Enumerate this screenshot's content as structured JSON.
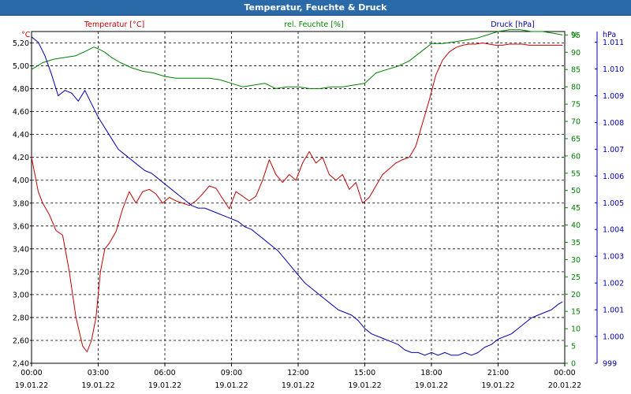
{
  "window": {
    "title": "Temperatur, Feuchte & Druck"
  },
  "colors": {
    "temperature": "#c00000",
    "humidity": "#008000",
    "pressure": "#0000b0",
    "title_bar": "#2b6aa8"
  },
  "chart_data": {
    "type": "line",
    "title": "Temperatur, Feuchte & Druck",
    "grid": true,
    "x_ticks": [
      {
        "time": "00:00",
        "date": "19.01.22"
      },
      {
        "time": "03:00",
        "date": "19.01.22"
      },
      {
        "time": "06:00",
        "date": "19.01.22"
      },
      {
        "time": "09:00",
        "date": "19.01.22"
      },
      {
        "time": "12:00",
        "date": "19.01.22"
      },
      {
        "time": "15:00",
        "date": "19.01.22"
      },
      {
        "time": "18:00",
        "date": "19.01.22"
      },
      {
        "time": "21:00",
        "date": "19.01.22"
      },
      {
        "time": "00:00",
        "date": "20.01.22"
      }
    ],
    "x_range_hours": [
      0,
      24
    ],
    "axes": {
      "temperature": {
        "unit": "°C",
        "range": [
          2.4,
          5.3
        ],
        "ticks": [
          "2,40",
          "2,60",
          "2,80",
          "3,00",
          "3,20",
          "3,40",
          "3,60",
          "3,80",
          "4,00",
          "4,20",
          "4,40",
          "4,60",
          "4,80",
          "5,00",
          "5,20"
        ]
      },
      "humidity": {
        "unit": "%",
        "range": [
          0,
          96
        ],
        "ticks": [
          "0",
          "5",
          "10",
          "15",
          "20",
          "25",
          "30",
          "35",
          "40",
          "45",
          "50",
          "55",
          "60",
          "65",
          "70",
          "75",
          "80",
          "85",
          "90",
          "95"
        ]
      },
      "pressure": {
        "unit": "hPa",
        "range": [
          0.999,
          1.0114
        ],
        "ticks": [
          "999",
          "1.000",
          "1.001",
          "1.002",
          "1.003",
          "1.004",
          "1.005",
          "1.006",
          "1.007",
          "1.008",
          "1.009",
          "1.010",
          "1.011"
        ]
      }
    },
    "series": [
      {
        "name": "Temperatur [°C]",
        "axis": "temperature",
        "x": [
          0,
          0.3,
          0.5,
          0.8,
          1.1,
          1.4,
          1.7,
          2.0,
          2.3,
          2.5,
          2.7,
          2.9,
          3.1,
          3.3,
          3.5,
          3.8,
          4.1,
          4.4,
          4.7,
          5.0,
          5.3,
          5.6,
          5.9,
          6.2,
          6.5,
          6.8,
          7.1,
          7.4,
          7.7,
          8.0,
          8.3,
          8.6,
          8.9,
          9.2,
          9.5,
          9.8,
          10.1,
          10.4,
          10.7,
          11.0,
          11.3,
          11.6,
          11.9,
          12.2,
          12.5,
          12.8,
          13.1,
          13.4,
          13.7,
          14.0,
          14.3,
          14.6,
          14.9,
          15.2,
          15.5,
          15.8,
          16.1,
          16.4,
          16.7,
          17.0,
          17.3,
          17.6,
          17.9,
          18.2,
          18.5,
          18.8,
          19.1,
          19.4,
          19.7,
          20.0,
          20.3,
          20.6,
          20.9,
          21.2,
          21.5,
          21.8,
          22.1,
          22.4,
          22.7,
          23.0,
          23.3,
          23.6,
          23.9
        ],
        "y": [
          4.2,
          3.9,
          3.8,
          3.7,
          3.56,
          3.52,
          3.2,
          2.8,
          2.55,
          2.5,
          2.6,
          2.8,
          3.2,
          3.4,
          3.45,
          3.55,
          3.75,
          3.9,
          3.8,
          3.9,
          3.92,
          3.88,
          3.8,
          3.85,
          3.82,
          3.8,
          3.78,
          3.82,
          3.88,
          3.95,
          3.93,
          3.84,
          3.75,
          3.9,
          3.86,
          3.82,
          3.86,
          4.0,
          4.18,
          4.05,
          3.98,
          4.05,
          4.0,
          4.15,
          4.25,
          4.15,
          4.2,
          4.05,
          4.0,
          4.05,
          3.92,
          3.98,
          3.8,
          3.85,
          3.95,
          4.05,
          4.1,
          4.15,
          4.18,
          4.2,
          4.3,
          4.5,
          4.7,
          4.92,
          5.05,
          5.12,
          5.16,
          5.18,
          5.19,
          5.19,
          5.2,
          5.19,
          5.18,
          5.18,
          5.19,
          5.19,
          5.19,
          5.18,
          5.18,
          5.18,
          5.18,
          5.18,
          5.18
        ]
      },
      {
        "name": "rel. Feuchte [%]",
        "axis": "humidity",
        "x": [
          0,
          0.5,
          1.0,
          1.5,
          2.0,
          2.5,
          2.8,
          3.0,
          3.3,
          3.6,
          4.0,
          4.5,
          5.0,
          5.5,
          6.0,
          6.5,
          7.0,
          7.5,
          8.0,
          8.5,
          9.0,
          9.5,
          10.0,
          10.5,
          11.0,
          11.5,
          12.0,
          12.5,
          13.0,
          13.5,
          14.0,
          14.5,
          15.0,
          15.5,
          16.0,
          16.5,
          17.0,
          17.5,
          18.0,
          18.5,
          19.0,
          19.5,
          20.0,
          20.5,
          21.0,
          21.5,
          22.0,
          22.5,
          23.0,
          23.5,
          23.9
        ],
        "y": [
          85,
          87,
          88,
          88.5,
          89,
          90.5,
          91.5,
          91,
          90,
          88.5,
          87,
          85.5,
          84.5,
          84,
          83,
          82.5,
          82.5,
          82.5,
          82.5,
          82,
          81,
          80,
          80.5,
          81,
          79.5,
          80,
          80,
          79.5,
          79.5,
          80,
          80,
          80.5,
          81,
          84,
          85,
          86,
          87.5,
          90,
          92.5,
          92.5,
          93,
          93.5,
          94,
          95,
          96,
          96.5,
          96.5,
          96,
          96,
          95.5,
          95
        ]
      },
      {
        "name": "Druck [hPa]",
        "axis": "pressure",
        "x": [
          0,
          0.3,
          0.6,
          0.9,
          1.2,
          1.5,
          1.8,
          2.1,
          2.4,
          2.7,
          3.0,
          3.3,
          3.6,
          3.9,
          4.2,
          4.5,
          4.8,
          5.1,
          5.4,
          5.7,
          6.0,
          6.3,
          6.6,
          6.9,
          7.2,
          7.5,
          7.8,
          8.1,
          8.4,
          8.7,
          9.0,
          9.3,
          9.6,
          9.9,
          10.2,
          10.5,
          10.8,
          11.1,
          11.4,
          11.7,
          12.0,
          12.3,
          12.6,
          12.9,
          13.2,
          13.5,
          13.8,
          14.1,
          14.4,
          14.7,
          15.0,
          15.3,
          15.6,
          15.9,
          16.2,
          16.5,
          16.8,
          17.1,
          17.4,
          17.7,
          18.0,
          18.3,
          18.6,
          18.9,
          19.2,
          19.5,
          19.8,
          20.1,
          20.4,
          20.7,
          21.0,
          21.3,
          21.6,
          21.9,
          22.2,
          22.5,
          22.8,
          23.1,
          23.4,
          23.7,
          23.9
        ],
        "y": [
          1.0112,
          1.011,
          1.0105,
          1.0098,
          1.009,
          1.0092,
          1.0091,
          1.0088,
          1.0092,
          1.0087,
          1.0082,
          1.0078,
          1.0074,
          1.007,
          1.0068,
          1.0066,
          1.0064,
          1.0062,
          1.0061,
          1.0059,
          1.0057,
          1.0055,
          1.0053,
          1.0051,
          1.0049,
          1.0048,
          1.0048,
          1.0047,
          1.0046,
          1.0045,
          1.0044,
          1.0043,
          1.0041,
          1.004,
          1.0038,
          1.0036,
          1.0034,
          1.0032,
          1.0029,
          1.0026,
          1.0023,
          1.002,
          1.0018,
          1.0016,
          1.0014,
          1.0012,
          1.001,
          1.0009,
          1.0008,
          1.0006,
          1.0003,
          1.0001,
          1.0,
          0.9999,
          0.9998,
          0.9997,
          0.9995,
          0.9994,
          0.9994,
          0.9993,
          0.9994,
          0.9993,
          0.9994,
          0.9993,
          0.9993,
          0.9994,
          0.9993,
          0.9994,
          0.9996,
          0.9997,
          0.9999,
          1.0,
          1.0001,
          1.0003,
          1.0005,
          1.0007,
          1.0008,
          1.0009,
          1.001,
          1.0012,
          1.0013
        ]
      }
    ]
  }
}
